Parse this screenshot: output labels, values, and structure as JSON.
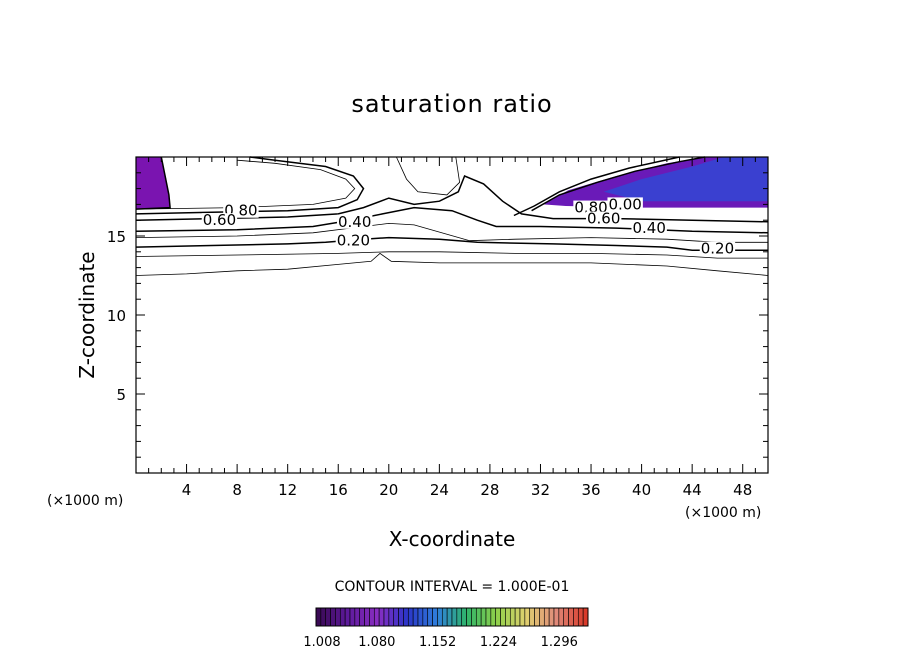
{
  "chart_data": {
    "type": "contour",
    "title": "saturation ratio",
    "xlabel": "X-coordinate",
    "ylabel": "Z-coordinate",
    "x_unit_left": "(×1000 m)",
    "x_unit_right": "(×1000 m)",
    "xlim": [
      0,
      50
    ],
    "ylim": [
      0,
      20
    ],
    "x_ticks": [
      4,
      8,
      12,
      16,
      20,
      24,
      28,
      32,
      36,
      40,
      44,
      48
    ],
    "y_ticks": [
      5,
      10,
      15
    ],
    "contour_interval_text": "CONTOUR INTERVAL = 1.000E-01",
    "contour_labels": [
      {
        "text": "0.80",
        "x": 8.3,
        "z": 16.6
      },
      {
        "text": "0.60",
        "x": 6.6,
        "z": 16.0
      },
      {
        "text": "0.40",
        "x": 17.3,
        "z": 15.9
      },
      {
        "text": "0.20",
        "x": 17.2,
        "z": 14.7
      },
      {
        "text": "0.80",
        "x": 36.0,
        "z": 16.8
      },
      {
        "text": "0.00",
        "x": 38.7,
        "z": 17.0
      },
      {
        "text": "0.60",
        "x": 37.0,
        "z": 16.1
      },
      {
        "text": "0.40",
        "x": 40.6,
        "z": 15.5
      },
      {
        "text": "0.20",
        "x": 46.0,
        "z": 14.2
      }
    ],
    "shaded_levels": [
      1.008,
      1.08,
      1.152,
      1.224,
      1.296
    ],
    "colorbar_tick_labels": [
      "1.008",
      "1.080",
      "1.152",
      "1.224",
      "1.296"
    ],
    "shade_colors": [
      "#3a0a55",
      "#5e1a9c",
      "#8a2ec2",
      "#2a35c8",
      "#2f7fdc",
      "#2fb56a",
      "#8fd04a",
      "#e0d070",
      "#e08a7a",
      "#d83a2a"
    ],
    "contour_lines": [
      {
        "level": 0.1,
        "points": [
          [
            0,
            12.5
          ],
          [
            4,
            12.6
          ],
          [
            8,
            12.8
          ],
          [
            12,
            12.9
          ],
          [
            16,
            13.2
          ],
          [
            18.6,
            13.4
          ],
          [
            19.3,
            13.9
          ],
          [
            20.2,
            13.4
          ],
          [
            24,
            13.3
          ],
          [
            30,
            13.3
          ],
          [
            36,
            13.3
          ],
          [
            42,
            13.1
          ],
          [
            46,
            12.8
          ],
          [
            50,
            12.5
          ]
        ]
      },
      {
        "level": 0.15,
        "points": [
          [
            0,
            13.7
          ],
          [
            8,
            13.8
          ],
          [
            16,
            13.9
          ],
          [
            20,
            14.0
          ],
          [
            24,
            14.0
          ],
          [
            30,
            13.9
          ],
          [
            36,
            13.9
          ],
          [
            42,
            13.8
          ],
          [
            46,
            13.6
          ],
          [
            50,
            13.6
          ]
        ]
      },
      {
        "level": 0.2,
        "points": [
          [
            0,
            14.3
          ],
          [
            6,
            14.4
          ],
          [
            12,
            14.5
          ],
          [
            15,
            14.6
          ],
          [
            18,
            14.8
          ],
          [
            20,
            14.9
          ],
          [
            24,
            14.8
          ],
          [
            27,
            14.6
          ],
          [
            33,
            14.5
          ],
          [
            38,
            14.4
          ],
          [
            42,
            14.3
          ],
          [
            44,
            14.1
          ],
          [
            50,
            14.1
          ]
        ]
      },
      {
        "level": 0.3,
        "points": [
          [
            0,
            14.9
          ],
          [
            8,
            15.0
          ],
          [
            14,
            15.2
          ],
          [
            18,
            15.6
          ],
          [
            20,
            15.8
          ],
          [
            22,
            15.7
          ],
          [
            26.4,
            14.7
          ],
          [
            30,
            14.8
          ],
          [
            36,
            14.9
          ],
          [
            42,
            14.8
          ],
          [
            46,
            14.6
          ],
          [
            50,
            14.6
          ]
        ]
      },
      {
        "level": 0.4,
        "points": [
          [
            0,
            15.3
          ],
          [
            8,
            15.4
          ],
          [
            14,
            15.6
          ],
          [
            17,
            16.0
          ],
          [
            19.5,
            16.4
          ],
          [
            22,
            16.8
          ],
          [
            25,
            16.6
          ],
          [
            27,
            16.0
          ],
          [
            28.5,
            15.6
          ],
          [
            32,
            15.6
          ],
          [
            38,
            15.5
          ],
          [
            44,
            15.3
          ],
          [
            50,
            15.2
          ]
        ]
      },
      {
        "level": 0.6,
        "points": [
          [
            0,
            16.0
          ],
          [
            6,
            16.1
          ],
          [
            12,
            16.2
          ],
          [
            16,
            16.4
          ],
          [
            18,
            16.8
          ],
          [
            20,
            17.4
          ],
          [
            22,
            17.0
          ],
          [
            24,
            17.2
          ],
          [
            25.5,
            17.8
          ],
          [
            26,
            18.8
          ],
          [
            27.5,
            18.3
          ],
          [
            29,
            17.2
          ],
          [
            30.5,
            16.4
          ],
          [
            33,
            16.1
          ],
          [
            38,
            16.1
          ],
          [
            44,
            16.0
          ],
          [
            50,
            15.9
          ]
        ]
      },
      {
        "level": 0.8,
        "points": [
          [
            0,
            16.4
          ],
          [
            6,
            16.5
          ],
          [
            12,
            16.6
          ],
          [
            16,
            16.8
          ],
          [
            17.5,
            17.3
          ],
          [
            18,
            18.0
          ],
          [
            17.2,
            18.8
          ],
          [
            15,
            19.4
          ],
          [
            11,
            19.8
          ],
          [
            9,
            20.0
          ]
        ]
      },
      {
        "level": 0.8,
        "points": [
          [
            29.9,
            16.3
          ],
          [
            31.5,
            16.9
          ],
          [
            33.5,
            17.8
          ],
          [
            36,
            18.6
          ],
          [
            39,
            19.3
          ],
          [
            43,
            20.0
          ]
        ]
      },
      {
        "level": 0.9,
        "points": [
          [
            0,
            16.7
          ],
          [
            8,
            16.8
          ],
          [
            14,
            17.0
          ],
          [
            16.6,
            17.4
          ],
          [
            17.3,
            18.0
          ],
          [
            16.6,
            18.6
          ],
          [
            14.6,
            19.2
          ],
          [
            11,
            19.6
          ],
          [
            8,
            19.8
          ]
        ]
      },
      {
        "level": 0.95,
        "points": [
          [
            20.6,
            20.0
          ],
          [
            21.4,
            18.6
          ],
          [
            22.3,
            17.8
          ],
          [
            24.6,
            17.6
          ],
          [
            25.6,
            18.4
          ],
          [
            25.3,
            20.0
          ]
        ]
      },
      {
        "level": 1.0,
        "points": [
          [
            2.0,
            20.0
          ],
          [
            2.6,
            17.6
          ],
          [
            2.7,
            16.8
          ],
          [
            0,
            16.7
          ]
        ]
      },
      {
        "level": 1.0,
        "points": [
          [
            31.3,
            16.6
          ],
          [
            33.5,
            17.6
          ],
          [
            36.5,
            18.4
          ],
          [
            39.5,
            19.1
          ],
          [
            43,
            19.7
          ],
          [
            45,
            20.0
          ]
        ]
      }
    ],
    "shaded_regions": [
      {
        "level": 1.008,
        "points": [
          [
            0,
            20.0
          ],
          [
            2.0,
            20.0
          ],
          [
            2.4,
            18.6
          ],
          [
            2.7,
            16.8
          ],
          [
            0,
            16.7
          ]
        ]
      },
      {
        "level": 1.008,
        "points": [
          [
            50,
            20.0
          ],
          [
            45,
            20.0
          ],
          [
            42,
            19.6
          ],
          [
            38,
            18.8
          ],
          [
            34.2,
            17.9
          ],
          [
            32.2,
            17.0
          ],
          [
            34,
            16.9
          ],
          [
            40,
            16.8
          ],
          [
            46,
            16.8
          ],
          [
            50,
            16.8
          ]
        ]
      },
      {
        "level": 1.08,
        "points": [
          [
            50,
            20.0
          ],
          [
            46.5,
            20.0
          ],
          [
            44,
            19.4
          ],
          [
            40,
            18.6
          ],
          [
            37,
            17.8
          ],
          [
            40,
            17.2
          ],
          [
            46,
            17.2
          ],
          [
            50,
            17.2
          ]
        ]
      }
    ]
  }
}
